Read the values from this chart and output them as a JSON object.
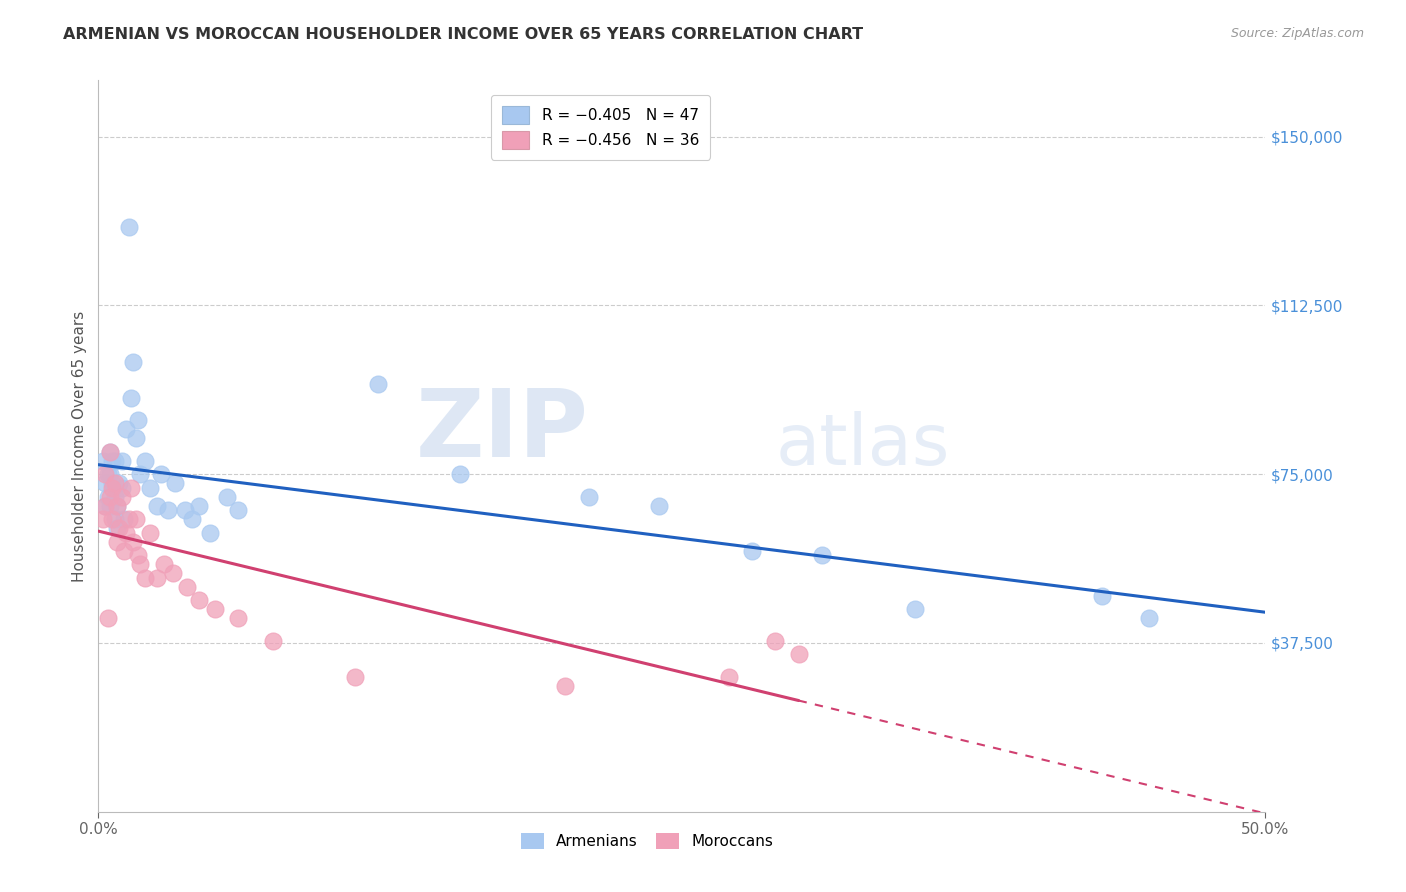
{
  "title": "ARMENIAN VS MOROCCAN HOUSEHOLDER INCOME OVER 65 YEARS CORRELATION CHART",
  "source": "Source: ZipAtlas.com",
  "ylabel": "Householder Income Over 65 years",
  "watermark_bold": "ZIP",
  "watermark_light": "atlas",
  "right_ytick_labels": [
    "$150,000",
    "$112,500",
    "$75,000",
    "$37,500"
  ],
  "right_ytick_values": [
    150000,
    112500,
    75000,
    37500
  ],
  "ylim": [
    0,
    162500
  ],
  "xlim": [
    0.0,
    0.5
  ],
  "armenian_R": -0.405,
  "armenian_N": 47,
  "moroccan_R": -0.456,
  "moroccan_N": 36,
  "armenian_color": "#a8c8f0",
  "moroccan_color": "#f0a0b8",
  "armenian_line_color": "#2060c0",
  "moroccan_line_color": "#d04070",
  "legend_armenian_label": "R = −0.405   N = 47",
  "legend_moroccan_label": "R = −0.456   N = 36",
  "armenians_x": [
    0.002,
    0.003,
    0.003,
    0.004,
    0.004,
    0.005,
    0.005,
    0.005,
    0.006,
    0.006,
    0.007,
    0.007,
    0.007,
    0.008,
    0.008,
    0.009,
    0.01,
    0.01,
    0.011,
    0.012,
    0.013,
    0.014,
    0.015,
    0.016,
    0.017,
    0.018,
    0.02,
    0.022,
    0.025,
    0.027,
    0.03,
    0.033,
    0.037,
    0.04,
    0.043,
    0.048,
    0.055,
    0.06,
    0.12,
    0.155,
    0.21,
    0.24,
    0.28,
    0.31,
    0.35,
    0.43,
    0.45
  ],
  "armenians_y": [
    78000,
    73000,
    68000,
    75000,
    70000,
    80000,
    75000,
    68000,
    78000,
    73000,
    70000,
    65000,
    78000,
    68000,
    63000,
    73000,
    78000,
    72000,
    65000,
    85000,
    130000,
    92000,
    100000,
    83000,
    87000,
    75000,
    78000,
    72000,
    68000,
    75000,
    67000,
    73000,
    67000,
    65000,
    68000,
    62000,
    70000,
    67000,
    95000,
    75000,
    70000,
    68000,
    58000,
    57000,
    45000,
    48000,
    43000
  ],
  "moroccans_x": [
    0.002,
    0.003,
    0.003,
    0.004,
    0.005,
    0.005,
    0.006,
    0.006,
    0.007,
    0.008,
    0.008,
    0.009,
    0.01,
    0.011,
    0.012,
    0.013,
    0.014,
    0.015,
    0.016,
    0.017,
    0.018,
    0.02,
    0.022,
    0.025,
    0.028,
    0.032,
    0.038,
    0.043,
    0.05,
    0.06,
    0.075,
    0.11,
    0.2,
    0.27,
    0.29,
    0.3
  ],
  "moroccans_y": [
    65000,
    75000,
    68000,
    43000,
    80000,
    70000,
    65000,
    72000,
    73000,
    68000,
    60000,
    63000,
    70000,
    58000,
    62000,
    65000,
    72000,
    60000,
    65000,
    57000,
    55000,
    52000,
    62000,
    52000,
    55000,
    53000,
    50000,
    47000,
    45000,
    43000,
    38000,
    30000,
    28000,
    30000,
    38000,
    35000
  ],
  "grid_color": "#cccccc",
  "background_color": "#ffffff",
  "title_color": "#333333",
  "ytick_label_color": "#4a90d9",
  "source_color": "#999999",
  "bottom_legend_labels": [
    "Armenians",
    "Moroccans"
  ]
}
